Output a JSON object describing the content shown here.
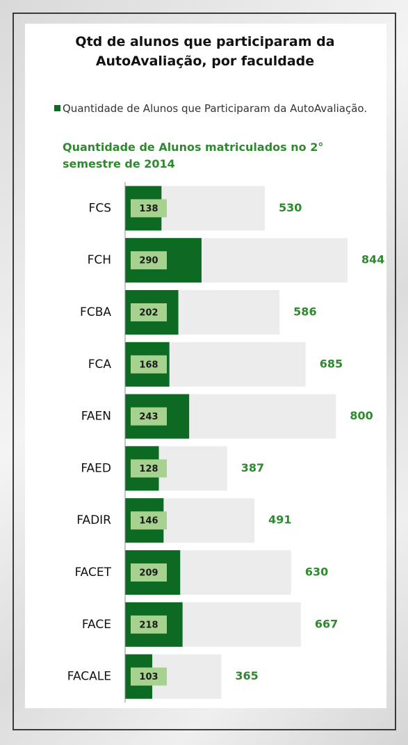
{
  "chart_data": {
    "type": "bar",
    "orientation": "horizontal",
    "title": "Qtd de alunos que participaram da AutoAvaliação, por faculdade",
    "categories": [
      "FCS",
      "FCH",
      "FCBA",
      "FCA",
      "FAEN",
      "FAED",
      "FADIR",
      "FACET",
      "FACE",
      "FACALE"
    ],
    "series": [
      {
        "name": "Quantidade de Alunos que Participaram da AutoAvaliação.",
        "color": "#0d6a22",
        "values": [
          138,
          290,
          202,
          168,
          243,
          128,
          146,
          209,
          218,
          103
        ]
      },
      {
        "name": "Quantidade de Alunos matriculados no 2° semestre de 2014",
        "color": "#ececec",
        "values": [
          530,
          844,
          586,
          685,
          800,
          387,
          491,
          630,
          667,
          365
        ]
      }
    ]
  }
}
